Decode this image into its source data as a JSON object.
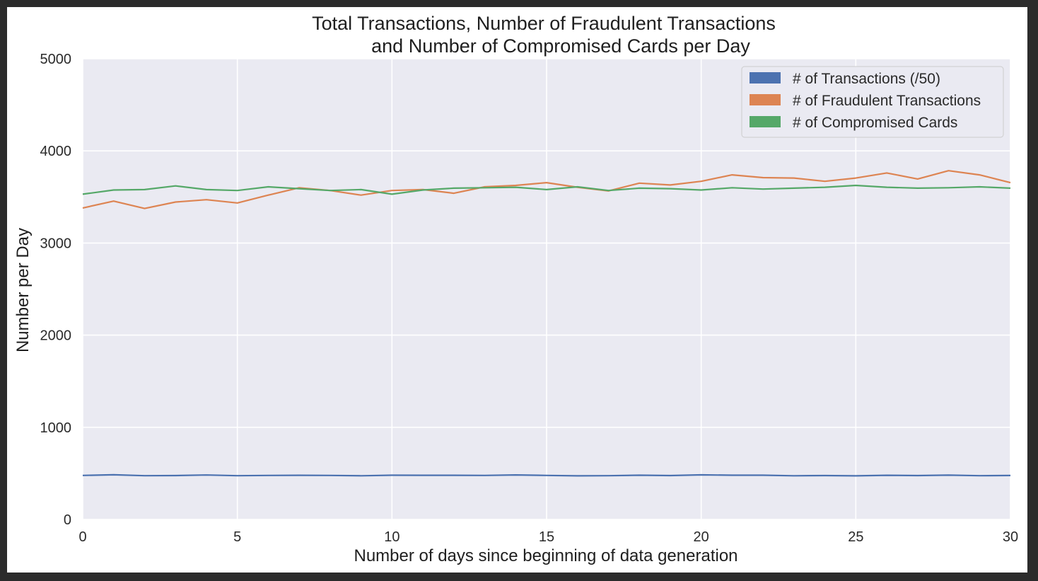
{
  "chart_data": {
    "type": "line",
    "title": "Total Transactions, Number of Fraudulent Transactions",
    "subtitle": "and Number of Compromised Cards per Day",
    "xlabel": "Number of days since beginning of data generation",
    "ylabel": "Number per Day",
    "xlim": [
      0,
      30
    ],
    "ylim": [
      0,
      5000
    ],
    "xticks": [
      0,
      5,
      10,
      15,
      20,
      25,
      30
    ],
    "yticks": [
      0,
      1000,
      2000,
      3000,
      4000,
      5000
    ],
    "grid": true,
    "legend_position": "top-right",
    "x": [
      0,
      1,
      2,
      3,
      4,
      5,
      6,
      7,
      8,
      9,
      10,
      11,
      12,
      13,
      14,
      15,
      16,
      17,
      18,
      19,
      20,
      21,
      22,
      23,
      24,
      25,
      26,
      27,
      28,
      29,
      30
    ],
    "series": [
      {
        "name": "# of Transactions (/50)",
        "color": "#4c72b0",
        "values": [
          478,
          485,
          475,
          476,
          482,
          475,
          478,
          479,
          478,
          474,
          480,
          479,
          479,
          478,
          483,
          478,
          473,
          475,
          480,
          476,
          484,
          480,
          480,
          474,
          476,
          473,
          479,
          476,
          481,
          475,
          477
        ]
      },
      {
        "name": "# of Fraudulent Transactions",
        "color": "#dd8452",
        "values": [
          3380,
          3455,
          3375,
          3445,
          3470,
          3435,
          3520,
          3600,
          3570,
          3520,
          3570,
          3580,
          3540,
          3610,
          3625,
          3655,
          3605,
          3565,
          3650,
          3630,
          3670,
          3740,
          3710,
          3705,
          3670,
          3705,
          3760,
          3695,
          3785,
          3740,
          3655
        ]
      },
      {
        "name": "# of Compromised Cards",
        "color": "#55a868",
        "values": [
          3530,
          3575,
          3580,
          3620,
          3580,
          3570,
          3610,
          3590,
          3570,
          3580,
          3530,
          3575,
          3595,
          3600,
          3605,
          3580,
          3610,
          3570,
          3595,
          3590,
          3575,
          3600,
          3585,
          3595,
          3605,
          3625,
          3605,
          3595,
          3600,
          3610,
          3595
        ]
      }
    ]
  }
}
